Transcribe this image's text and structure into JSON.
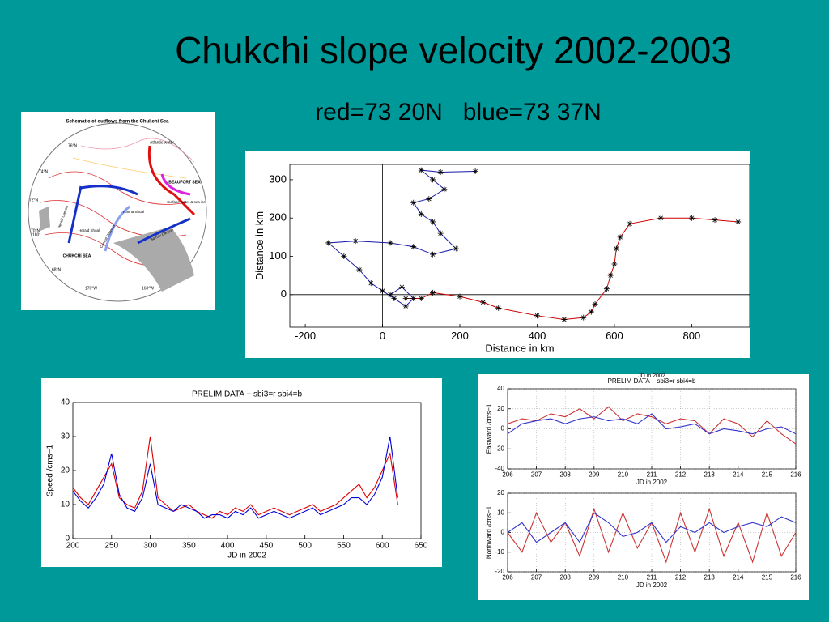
{
  "title": "Chukchi slope velocity 2002-2003",
  "subtitle": "red=73 20N   blue=73 37N",
  "map": {
    "title": "Schematic of outflows from the Chukchi Sea",
    "labels": [
      "BEAUFORT SEA",
      "CHUKCHI SEA",
      "Atlantic water",
      "Surface water & sea ice",
      "Herald Shoal",
      "Hanna Shoal",
      "Herald Canyon",
      "Central Channel",
      "Barrow Canyon"
    ],
    "latitudes": [
      "76°N",
      "74°N",
      "72°N",
      "70°N",
      "68°N"
    ],
    "longitudes": [
      "170°W",
      "160°W",
      "180°"
    ]
  },
  "chart_data": [
    {
      "type": "line",
      "marker": "star",
      "xlabel": "Distance in km",
      "ylabel": "Distance in km",
      "xlim": [
        -240,
        950
      ],
      "ylim": [
        -85,
        340
      ],
      "xticks": [
        -200,
        0,
        200,
        400,
        600,
        800
      ],
      "yticks": [
        0,
        100,
        200,
        300
      ],
      "grid": false,
      "series": [
        {
          "color": "#cc0000",
          "x": [
            60,
            100,
            130,
            200,
            260,
            300,
            400,
            470,
            520,
            540,
            550,
            580,
            590,
            600,
            605,
            615,
            640,
            720,
            800,
            860,
            920
          ],
          "values": [
            -10,
            -10,
            5,
            -5,
            -20,
            -35,
            -55,
            -65,
            -60,
            -45,
            -25,
            15,
            50,
            80,
            120,
            150,
            185,
            200,
            200,
            195,
            190
          ]
        },
        {
          "color": "#1a1aaa",
          "x": [
            240,
            150,
            100,
            130,
            160,
            120,
            80,
            100,
            130,
            150,
            190,
            130,
            80,
            20,
            -70,
            -140,
            -100,
            -60,
            -30,
            0,
            30,
            60,
            80,
            50,
            20
          ],
          "values": [
            322,
            320,
            325,
            300,
            275,
            250,
            240,
            210,
            190,
            160,
            120,
            105,
            125,
            135,
            140,
            135,
            100,
            65,
            30,
            10,
            -10,
            -30,
            -10,
            20,
            0
          ]
        }
      ]
    },
    {
      "type": "line",
      "title": "PRELIM DATA − sbi3=r sbi4=b",
      "xlabel": "JD in 2002",
      "ylabel": "Speed /cms−1",
      "xlim": [
        200,
        650
      ],
      "ylim": [
        0,
        40
      ],
      "xticks": [
        200,
        250,
        300,
        350,
        400,
        450,
        500,
        550,
        600,
        650
      ],
      "yticks": [
        0,
        10,
        20,
        30,
        40
      ],
      "grid": false,
      "x": [
        200,
        210,
        220,
        230,
        240,
        250,
        260,
        270,
        280,
        290,
        300,
        310,
        320,
        330,
        340,
        350,
        360,
        370,
        380,
        390,
        400,
        410,
        420,
        430,
        440,
        450,
        460,
        470,
        480,
        490,
        500,
        510,
        520,
        530,
        540,
        550,
        560,
        570,
        580,
        590,
        600,
        610,
        620
      ],
      "series": [
        {
          "color": "#dd0000",
          "values": [
            15,
            12,
            10,
            14,
            18,
            22,
            12,
            10,
            9,
            14,
            30,
            12,
            10,
            8,
            9,
            10,
            8,
            7,
            6,
            8,
            7,
            9,
            8,
            10,
            7,
            8,
            9,
            8,
            7,
            8,
            9,
            10,
            8,
            9,
            10,
            12,
            14,
            16,
            12,
            15,
            20,
            25,
            10
          ]
        },
        {
          "color": "#0000dd",
          "values": [
            14,
            11,
            9,
            12,
            16,
            25,
            13,
            9,
            8,
            12,
            22,
            10,
            9,
            8,
            10,
            9,
            8,
            6,
            7,
            7,
            6,
            8,
            7,
            9,
            6,
            7,
            8,
            7,
            6,
            7,
            8,
            9,
            7,
            8,
            9,
            10,
            12,
            12,
            10,
            13,
            18,
            30,
            12
          ]
        }
      ]
    },
    {
      "type": "line",
      "header": "JD in 2002",
      "title": "PRELIM DATA − sbi3=r sbi4=b",
      "xlabel": "JD in 2002",
      "ylabel": "Eastward /cms−1",
      "xlim": [
        206,
        216
      ],
      "ylim": [
        -40,
        40
      ],
      "xticks": [
        206,
        207,
        208,
        209,
        210,
        211,
        212,
        213,
        214,
        215,
        216
      ],
      "yticks": [
        -40,
        -20,
        0,
        20,
        40
      ],
      "grid": true,
      "x": [
        206,
        206.5,
        207,
        207.5,
        208,
        208.5,
        209,
        209.5,
        210,
        210.5,
        211,
        211.5,
        212,
        212.5,
        213,
        213.5,
        214,
        214.5,
        215,
        215.5,
        216
      ],
      "series": [
        {
          "color": "#cc3333",
          "values": [
            5,
            10,
            8,
            15,
            12,
            20,
            10,
            22,
            8,
            15,
            12,
            5,
            10,
            8,
            -5,
            10,
            5,
            -8,
            8,
            -5,
            -15
          ]
        },
        {
          "color": "#3333cc",
          "values": [
            -5,
            5,
            8,
            10,
            5,
            10,
            12,
            8,
            10,
            5,
            15,
            0,
            2,
            5,
            -5,
            0,
            -2,
            -5,
            0,
            2,
            -5
          ]
        }
      ]
    },
    {
      "type": "line",
      "xlabel": "JD in 2002",
      "ylabel": "Northward /cms−1",
      "xlim": [
        206,
        216
      ],
      "ylim": [
        -20,
        20
      ],
      "xticks": [
        206,
        207,
        208,
        209,
        210,
        211,
        212,
        213,
        214,
        215,
        216
      ],
      "yticks": [
        -20,
        -10,
        0,
        10,
        20
      ],
      "grid": true,
      "x": [
        206,
        206.5,
        207,
        207.5,
        208,
        208.5,
        209,
        209.5,
        210,
        210.5,
        211,
        211.5,
        212,
        212.5,
        213,
        213.5,
        214,
        214.5,
        215,
        215.5,
        216
      ],
      "series": [
        {
          "color": "#cc3333",
          "values": [
            0,
            -10,
            10,
            -5,
            5,
            -12,
            12,
            -10,
            10,
            -8,
            5,
            -15,
            10,
            -10,
            12,
            -12,
            5,
            -15,
            10,
            -12,
            0
          ]
        },
        {
          "color": "#3333cc",
          "values": [
            0,
            5,
            -5,
            0,
            5,
            -5,
            10,
            5,
            -2,
            0,
            5,
            -5,
            3,
            0,
            5,
            0,
            3,
            5,
            3,
            8,
            5
          ]
        }
      ]
    }
  ]
}
